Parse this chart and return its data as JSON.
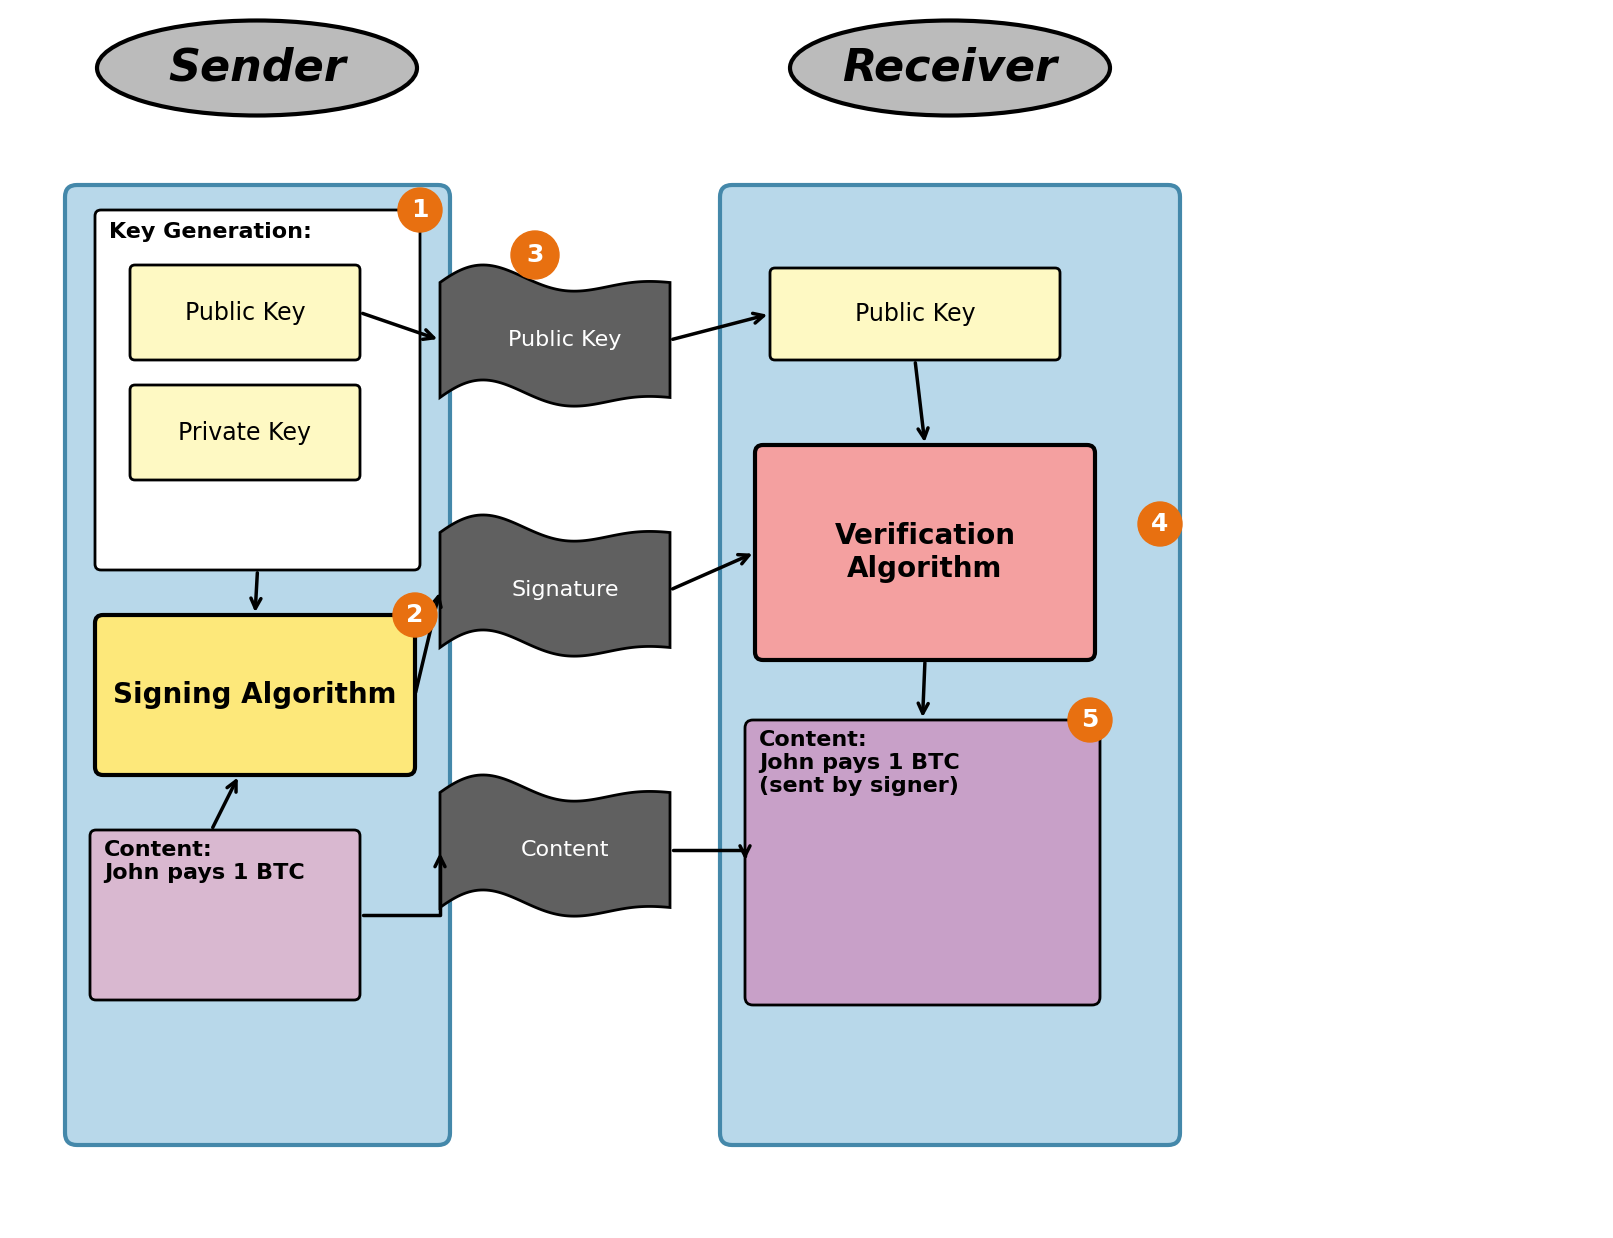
{
  "bg_color": "#ffffff",
  "sender_label": "Sender",
  "receiver_label": "Receiver",
  "sender_bg": "#b8d8ea",
  "receiver_bg": "#b8d8ea",
  "key_gen_bg": "#ffffff",
  "public_key_box_color": "#fef9c3",
  "private_key_box_color": "#fef9c3",
  "signing_algo_color": "#fde87a",
  "content_sender_color": "#d9b8d0",
  "public_key_recv_color": "#fef9c3",
  "verification_algo_color": "#f4a0a0",
  "content_recv_color": "#c8a0c8",
  "wave_shape_color": "#606060",
  "orange_circle_color": "#e87010",
  "ellipse_color": "#bbbbbb",
  "labels": {
    "key_gen": "Key Generation:",
    "public_key_left": "Public Key",
    "private_key_left": "Private Key",
    "signing_algo": "Signing Algorithm",
    "content_sender": "Content:\nJohn pays 1 BTC",
    "public_key_wave": "Public Key",
    "signature_wave": "Signature",
    "content_wave": "Content",
    "public_key_recv": "Public Key",
    "verification_algo": "Verification\nAlgorithm",
    "content_recv": "Content:\nJohn pays 1 BTC\n(sent by signer)"
  }
}
